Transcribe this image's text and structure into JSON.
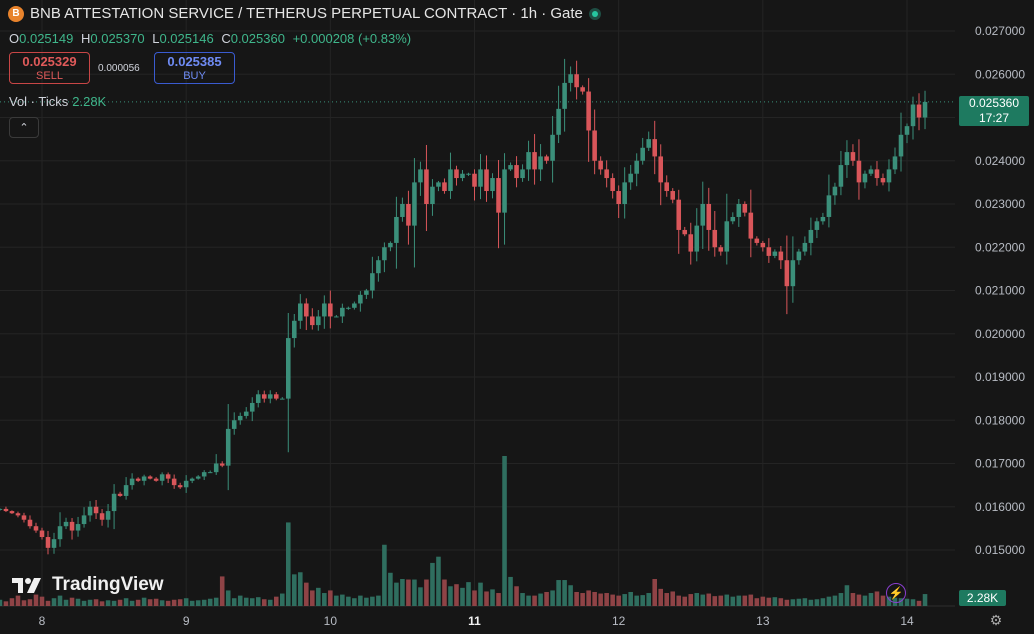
{
  "header": {
    "coin_icon": "coin-logo-icon",
    "title": "BNB ATTESTATION SERVICE / TETHERUS PERPETUAL CONTRACT · 1h · Gate",
    "status": "live-dot-icon"
  },
  "ohlc": {
    "o_label": "O",
    "o": "0.025149",
    "h_label": "H",
    "h": "0.025370",
    "l_label": "L",
    "l": "0.025146",
    "c_label": "C",
    "c": "0.025360",
    "change": "+0.000208 (+0.83%)"
  },
  "trade": {
    "sell_price": "0.025329",
    "sell_label": "SELL",
    "spread": "0.000056",
    "buy_price": "0.025385",
    "buy_label": "BUY"
  },
  "volume_legend": {
    "label": "Vol · Ticks",
    "value": "2.28K"
  },
  "logo": {
    "text": "TradingView"
  },
  "price_tag": {
    "price": "0.025360",
    "countdown": "17:27"
  },
  "volume_tag": "2.28K",
  "colors": {
    "up": "#3b8f7a",
    "down": "#d9565a",
    "up_vol": "#2f6e5f",
    "down_vol": "#8f4346",
    "bg": "#161616",
    "grid": "#242424",
    "accent": "#1e7a60"
  },
  "chart_data": {
    "type": "candlestick",
    "ylim": [
      0.014,
      0.0272
    ],
    "y_ticks": [
      0.015,
      0.016,
      0.017,
      0.018,
      0.019,
      0.02,
      0.021,
      0.022,
      0.023,
      0.024,
      0.025,
      0.026,
      0.027
    ],
    "y_tick_labels": [
      "0.015000",
      "0.016000",
      "0.017000",
      "0.018000",
      "0.019000",
      "0.020000",
      "0.021000",
      "0.022000",
      "0.023000",
      "0.024000",
      "0.025000",
      "0.026000",
      "0.027000"
    ],
    "x_tick_labels": [
      "8",
      "9",
      "10",
      "11",
      "12",
      "13",
      "14"
    ],
    "x_tick_hours": [
      0,
      24,
      48,
      72,
      96,
      120,
      144
    ],
    "x_start_hour": -7,
    "last_price": 0.02536,
    "closes": [
      0.01595,
      0.0159,
      0.01585,
      0.0158,
      0.0157,
      0.01555,
      0.01545,
      0.0153,
      0.01505,
      0.01525,
      0.01555,
      0.01565,
      0.01545,
      0.0156,
      0.0158,
      0.016,
      0.01585,
      0.0157,
      0.0159,
      0.0163,
      0.01625,
      0.0165,
      0.01665,
      0.0166,
      0.0167,
      0.01665,
      0.0166,
      0.01675,
      0.01665,
      0.0165,
      0.01645,
      0.0166,
      0.01665,
      0.0167,
      0.0168,
      0.0168,
      0.017,
      0.01695,
      0.0178,
      0.018,
      0.0181,
      0.0182,
      0.0184,
      0.0186,
      0.0185,
      0.0186,
      0.0185,
      0.0185,
      0.0199,
      0.0203,
      0.0207,
      0.0204,
      0.0202,
      0.0204,
      0.0207,
      0.0204,
      0.0204,
      0.0206,
      0.0206,
      0.0207,
      0.0209,
      0.021,
      0.0214,
      0.0217,
      0.022,
      0.0221,
      0.0227,
      0.023,
      0.0225,
      0.0235,
      0.0238,
      0.023,
      0.0234,
      0.0235,
      0.0233,
      0.0238,
      0.0236,
      0.0237,
      0.0237,
      0.0234,
      0.0238,
      0.0233,
      0.0236,
      0.0228,
      0.0238,
      0.0239,
      0.0236,
      0.0238,
      0.0242,
      0.0238,
      0.0241,
      0.024,
      0.0246,
      0.0252,
      0.0258,
      0.026,
      0.0257,
      0.0256,
      0.0247,
      0.024,
      0.0238,
      0.0236,
      0.0233,
      0.023,
      0.0235,
      0.0237,
      0.024,
      0.0243,
      0.0245,
      0.0241,
      0.0235,
      0.0233,
      0.0231,
      0.0224,
      0.0223,
      0.0219,
      0.0225,
      0.023,
      0.0224,
      0.022,
      0.0219,
      0.0226,
      0.0227,
      0.023,
      0.0228,
      0.0222,
      0.0221,
      0.022,
      0.0218,
      0.0219,
      0.0217,
      0.0211,
      0.0217,
      0.0219,
      0.0221,
      0.0224,
      0.0226,
      0.0227,
      0.0232,
      0.0234,
      0.0239,
      0.0242,
      0.024,
      0.0235,
      0.0237,
      0.0238,
      0.0236,
      0.0235,
      0.0238,
      0.0241,
      0.0246,
      0.0248,
      0.0253,
      0.025,
      0.02536
    ],
    "volumes": [
      1.2,
      0.9,
      1.5,
      2.0,
      1.1,
      1.3,
      2.2,
      1.8,
      1.0,
      1.5,
      2.0,
      1.2,
      1.6,
      1.4,
      1.0,
      1.2,
      1.3,
      0.9,
      1.1,
      1.0,
      1.2,
      1.5,
      1.0,
      1.2,
      1.6,
      1.3,
      1.4,
      1.1,
      1.0,
      1.2,
      1.3,
      1.5,
      1.0,
      1.1,
      1.2,
      1.4,
      1.6,
      5.7,
      3.0,
      1.5,
      2.0,
      1.6,
      1.5,
      1.7,
      1.3,
      1.2,
      1.8,
      2.4,
      16.1,
      6.1,
      6.5,
      4.5,
      3.0,
      3.5,
      2.5,
      3.0,
      2.0,
      2.2,
      1.8,
      1.5,
      2.0,
      1.6,
      1.8,
      2.0,
      11.8,
      6.4,
      4.5,
      5.2,
      5.1,
      5.1,
      3.6,
      5.1,
      8.3,
      9.5,
      5.1,
      3.8,
      4.2,
      3.5,
      4.6,
      3.0,
      4.5,
      2.8,
      3.2,
      2.5,
      28.9,
      5.6,
      3.8,
      2.5,
      2.0,
      2.0,
      2.4,
      2.7,
      3.0,
      5.0,
      5.0,
      4.0,
      2.7,
      2.5,
      3.0,
      2.7,
      2.4,
      2.5,
      2.2,
      2.0,
      2.3,
      2.7,
      2.0,
      2.1,
      2.5,
      5.2,
      3.3,
      2.5,
      2.8,
      2.0,
      1.8,
      2.3,
      2.5,
      2.2,
      2.4,
      1.9,
      2.0,
      2.2,
      1.8,
      2.0,
      2.0,
      2.2,
      1.5,
      1.8,
      1.6,
      1.7,
      1.5,
      1.2,
      1.3,
      1.4,
      1.5,
      1.2,
      1.3,
      1.5,
      1.8,
      2.0,
      2.5,
      4.0,
      2.5,
      2.2,
      2.0,
      2.5,
      2.8,
      2.0,
      1.8,
      1.6,
      1.5,
      1.4,
      1.3,
      1.0,
      2.3
    ]
  }
}
